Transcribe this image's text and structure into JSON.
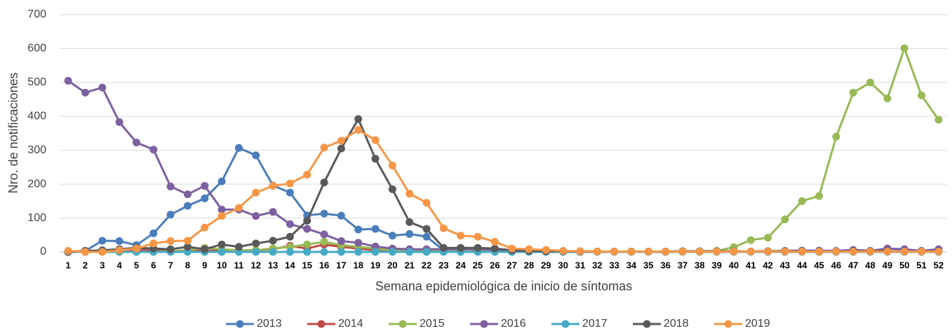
{
  "chart_data": {
    "type": "line",
    "x_label": "Semana epidemiológica de inicio de síntomas",
    "y_label": "Nro. de notificaciones",
    "categories": [
      "1",
      "2",
      "3",
      "4",
      "5",
      "6",
      "7",
      "8",
      "9",
      "10",
      "11",
      "12",
      "13",
      "14",
      "15",
      "16",
      "17",
      "18",
      "19",
      "20",
      "21",
      "22",
      "23",
      "24",
      "25",
      "26",
      "27",
      "28",
      "29",
      "30",
      "31",
      "32",
      "33",
      "34",
      "35",
      "36",
      "37",
      "38",
      "39",
      "40",
      "41",
      "42",
      "43",
      "44",
      "45",
      "46",
      "47",
      "48",
      "49",
      "50",
      "51",
      "52"
    ],
    "ylim": [
      0,
      700
    ],
    "yticks": [
      0,
      100,
      200,
      300,
      400,
      500,
      600,
      700
    ],
    "grid": true,
    "legend": "bottom",
    "series": [
      {
        "name": "2013",
        "color": "#4a7ebb",
        "values": [
          0,
          3,
          33,
          32,
          20,
          55,
          110,
          136,
          158,
          208,
          307,
          285,
          196,
          175,
          108,
          113,
          107,
          66,
          68,
          48,
          53,
          45,
          5,
          5,
          5,
          3,
          2,
          2,
          2,
          1,
          1,
          1,
          1,
          1,
          1,
          1,
          1,
          1,
          1,
          1,
          1,
          1,
          1,
          1,
          1,
          2,
          2,
          2,
          2,
          2,
          2,
          2
        ]
      },
      {
        "name": "2014",
        "color": "#be4b48",
        "values": [
          2,
          2,
          3,
          3,
          5,
          5,
          3,
          3,
          3,
          5,
          5,
          5,
          8,
          18,
          10,
          22,
          15,
          10,
          5,
          3,
          3,
          3,
          3,
          3,
          3,
          2,
          1,
          1,
          1,
          1,
          1,
          1,
          1,
          1,
          1,
          1,
          1,
          1,
          1,
          1,
          1,
          1,
          1,
          1,
          1,
          1,
          1,
          1,
          1,
          1,
          1,
          1
        ]
      },
      {
        "name": "2015",
        "color": "#98b954",
        "values": [
          0,
          0,
          0,
          0,
          0,
          0,
          2,
          5,
          12,
          8,
          5,
          5,
          10,
          15,
          22,
          30,
          20,
          15,
          10,
          5,
          3,
          3,
          3,
          3,
          3,
          2,
          2,
          2,
          2,
          2,
          2,
          1,
          1,
          1,
          1,
          1,
          2,
          2,
          3,
          14,
          35,
          42,
          96,
          150,
          165,
          340,
          470,
          500,
          453,
          601,
          462,
          390
        ]
      },
      {
        "name": "2016",
        "color": "#7d60a0",
        "values": [
          505,
          470,
          485,
          383,
          323,
          302,
          193,
          170,
          195,
          125,
          125,
          106,
          118,
          82,
          68,
          52,
          32,
          27,
          16,
          10,
          8,
          8,
          8,
          8,
          8,
          6,
          4,
          3,
          2,
          2,
          2,
          1,
          1,
          1,
          1,
          1,
          1,
          1,
          1,
          1,
          1,
          2,
          3,
          4,
          4,
          3,
          6,
          3,
          10,
          8,
          3,
          8
        ]
      },
      {
        "name": "2017",
        "color": "#46aac4",
        "values": [
          0,
          0,
          0,
          0,
          0,
          0,
          0,
          0,
          0,
          0,
          0,
          0,
          0,
          0,
          0,
          0,
          0,
          0,
          0,
          0,
          0,
          0,
          0,
          0,
          0,
          0,
          0,
          0,
          0,
          0,
          0,
          0,
          0,
          0,
          0,
          0,
          0,
          0,
          0,
          0,
          0,
          0,
          0,
          0,
          0,
          0,
          0,
          0,
          0,
          0,
          0,
          0
        ]
      },
      {
        "name": "2018",
        "color": "#595959",
        "values": [
          0,
          3,
          5,
          8,
          12,
          10,
          8,
          15,
          8,
          22,
          15,
          25,
          33,
          45,
          92,
          205,
          305,
          392,
          275,
          185,
          88,
          68,
          12,
          12,
          12,
          10,
          5,
          3,
          2,
          2,
          1,
          1,
          1,
          1,
          1,
          1,
          2,
          2,
          2,
          2,
          1,
          2,
          2,
          2,
          1,
          1,
          2,
          2,
          2,
          1,
          1,
          2
        ]
      },
      {
        "name": "2019",
        "color": "#f79646",
        "values": [
          3,
          0,
          0,
          5,
          10,
          25,
          32,
          33,
          72,
          106,
          130,
          175,
          195,
          202,
          228,
          308,
          328,
          360,
          330,
          255,
          172,
          145,
          70,
          48,
          45,
          30,
          10,
          8,
          6,
          3,
          2,
          1,
          1,
          1,
          1,
          1,
          1,
          1,
          1,
          1,
          1,
          1,
          1,
          1,
          1,
          1,
          1,
          1,
          1,
          1,
          1,
          1
        ]
      }
    ]
  }
}
